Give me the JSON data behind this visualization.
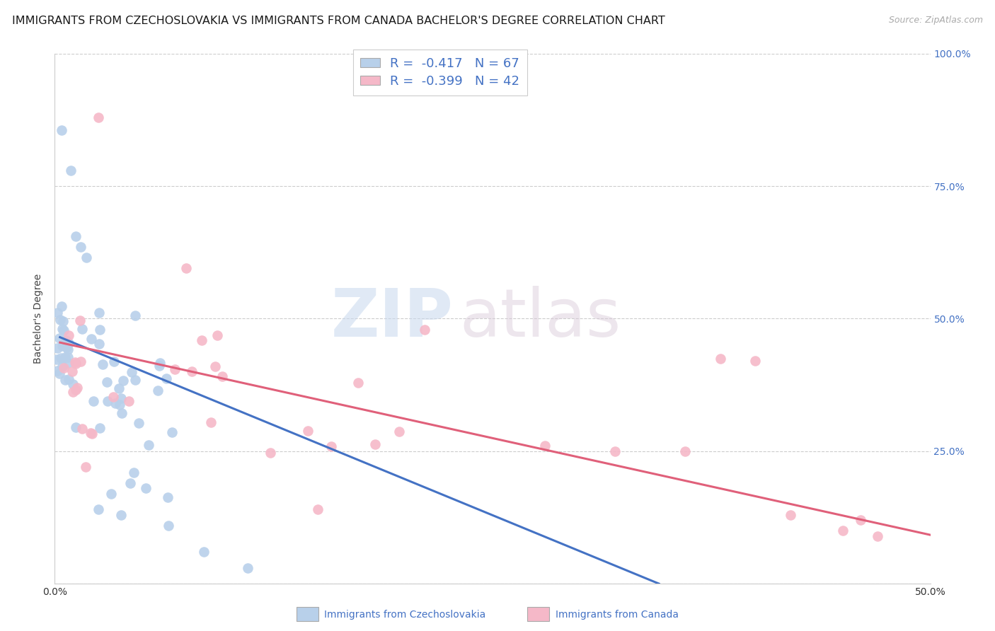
{
  "title": "IMMIGRANTS FROM CZECHOSLOVAKIA VS IMMIGRANTS FROM CANADA BACHELOR'S DEGREE CORRELATION CHART",
  "source": "Source: ZipAtlas.com",
  "ylabel": "Bachelor's Degree",
  "watermark_zip": "ZIP",
  "watermark_atlas": "atlas",
  "xlim": [
    0.0,
    0.5
  ],
  "ylim": [
    0.0,
    1.0
  ],
  "xticks": [
    0.0,
    0.1,
    0.2,
    0.3,
    0.4,
    0.5
  ],
  "xticklabels": [
    "0.0%",
    "",
    "",
    "",
    "",
    "50.0%"
  ],
  "yticks": [
    0.0,
    0.25,
    0.5,
    0.75,
    1.0
  ],
  "yticklabels_right": [
    "",
    "25.0%",
    "50.0%",
    "75.0%",
    "100.0%"
  ],
  "blue_fill": "#b8d0ea",
  "pink_fill": "#f5b8c8",
  "blue_line_color": "#4472c4",
  "pink_line_color": "#e0607a",
  "blue_R": -0.417,
  "blue_N": 67,
  "pink_R": -0.399,
  "pink_N": 42,
  "legend_label1": "Immigrants from Czechoslovakia",
  "legend_label2": "Immigrants from Canada",
  "title_fontsize": 11.5,
  "axis_label_fontsize": 10,
  "tick_fontsize": 10,
  "right_tick_color": "#4472c4",
  "bottom_tick_color": "#333333",
  "background_color": "#ffffff",
  "grid_color": "#cccccc",
  "blue_line_x0": 0.003,
  "blue_line_y0": 0.465,
  "blue_line_x1": 0.345,
  "blue_line_y1": 0.0,
  "pink_line_x0": 0.003,
  "pink_line_y0": 0.455,
  "pink_line_x1": 0.5,
  "pink_line_y1": 0.092
}
